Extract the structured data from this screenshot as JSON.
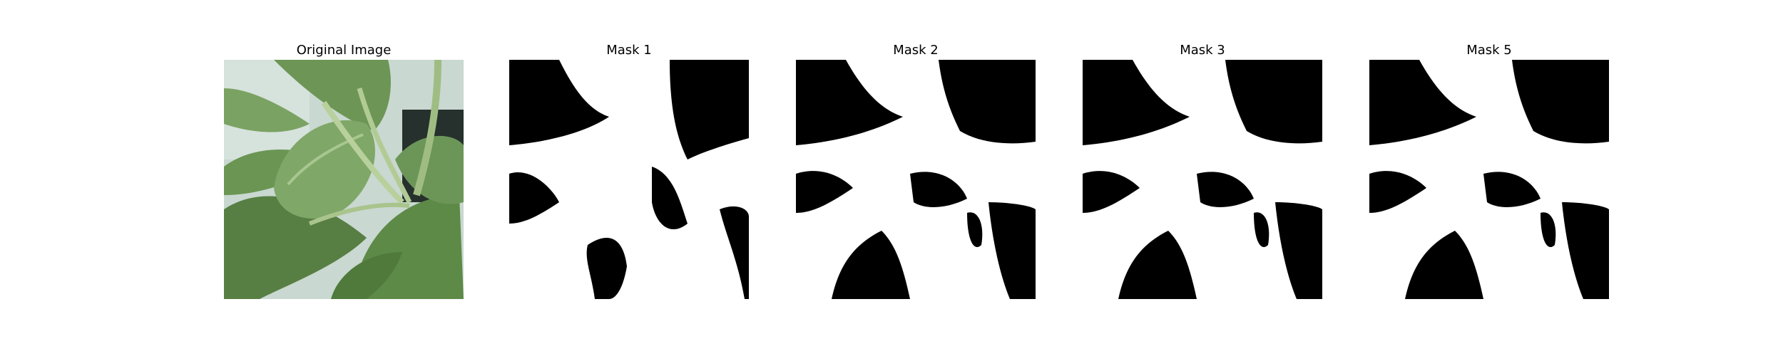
{
  "panels": [
    {
      "title": "Original Image",
      "kind": "photo-green-leaves"
    },
    {
      "title": "Mask 1",
      "kind": "binary-mask"
    },
    {
      "title": "Mask 2",
      "kind": "binary-mask"
    },
    {
      "title": "Mask 3",
      "kind": "binary-mask"
    },
    {
      "title": "Mask 5",
      "kind": "binary-mask"
    }
  ],
  "colors": {
    "background": "#ffffff",
    "mask_foreground": "#ffffff",
    "mask_background": "#000000",
    "leaf_dark": "#4f7a3c",
    "leaf_mid": "#6e9656",
    "leaf_light": "#9ebd83",
    "wall": "#c9d8d0"
  }
}
